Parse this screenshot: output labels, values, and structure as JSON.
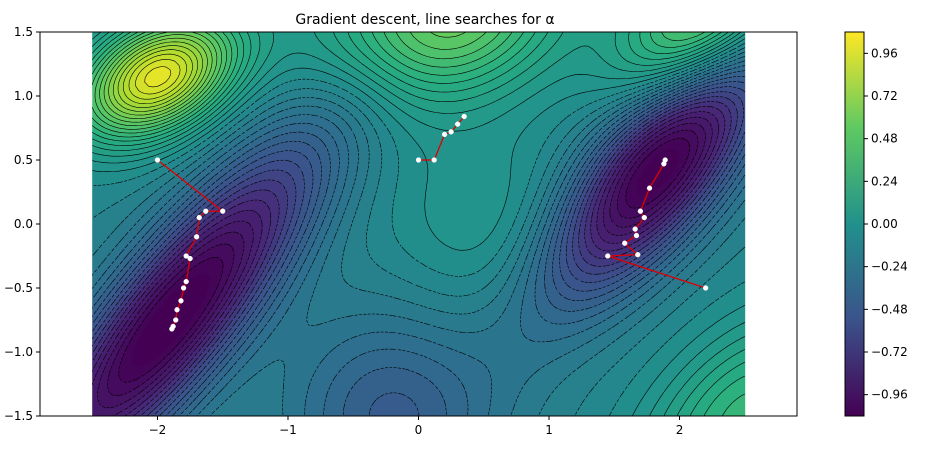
{
  "chart_data": {
    "type": "contour",
    "title": "Gradient descent, line searches for α",
    "xlim": [
      -2.9,
      2.9
    ],
    "ylim": [
      -1.5,
      1.5
    ],
    "field_domain": {
      "x": [
        -2.5,
        2.5
      ],
      "y": [
        -1.5,
        1.5
      ]
    },
    "x_ticks": [
      -2,
      -1,
      0,
      1,
      2
    ],
    "x_tick_labels": [
      "−2",
      "−1",
      "0",
      "1",
      "2"
    ],
    "y_ticks": [
      1.5,
      1.0,
      0.5,
      0.0,
      -0.5,
      -1.0,
      -1.5
    ],
    "y_tick_labels": [
      "1.5",
      "1.0",
      "0.5",
      "0.0",
      "−0.5",
      "−1.0",
      "−1.5"
    ],
    "colorbar": {
      "colormap": "viridis",
      "range": [
        -1.08,
        1.08
      ],
      "ticks": [
        0.96,
        0.72,
        0.48,
        0.24,
        0.0,
        -0.24,
        -0.48,
        -0.72,
        -0.96
      ],
      "tick_labels": [
        "0.96",
        "0.72",
        "0.48",
        "0.24",
        "0.00",
        "−0.24",
        "−0.48",
        "−0.72",
        "−0.96"
      ]
    },
    "path_color": "#e00000",
    "point_color": "#ffffff",
    "paths": [
      {
        "points": [
          [
            -2.0,
            0.5
          ],
          [
            -1.5,
            0.1
          ],
          [
            -1.63,
            0.1
          ],
          [
            -1.68,
            0.05
          ],
          [
            -1.7,
            -0.1
          ],
          [
            -1.78,
            -0.25
          ],
          [
            -1.75,
            -0.27
          ],
          [
            -1.78,
            -0.45
          ],
          [
            -1.8,
            -0.5
          ],
          [
            -1.82,
            -0.6
          ],
          [
            -1.85,
            -0.67
          ],
          [
            -1.86,
            -0.75
          ],
          [
            -1.88,
            -0.8
          ],
          [
            -1.89,
            -0.82
          ]
        ]
      },
      {
        "points": [
          [
            0.0,
            0.5
          ],
          [
            0.12,
            0.5
          ],
          [
            0.2,
            0.7
          ],
          [
            0.25,
            0.72
          ],
          [
            0.3,
            0.78
          ],
          [
            0.35,
            0.84
          ]
        ]
      },
      {
        "points": [
          [
            2.2,
            -0.5
          ],
          [
            1.45,
            -0.25
          ],
          [
            1.68,
            -0.24
          ],
          [
            1.58,
            -0.15
          ],
          [
            1.67,
            -0.09
          ],
          [
            1.66,
            -0.04
          ],
          [
            1.73,
            0.05
          ],
          [
            1.7,
            0.1
          ],
          [
            1.77,
            0.28
          ],
          [
            1.88,
            0.47
          ],
          [
            1.89,
            0.5
          ]
        ]
      }
    ]
  }
}
